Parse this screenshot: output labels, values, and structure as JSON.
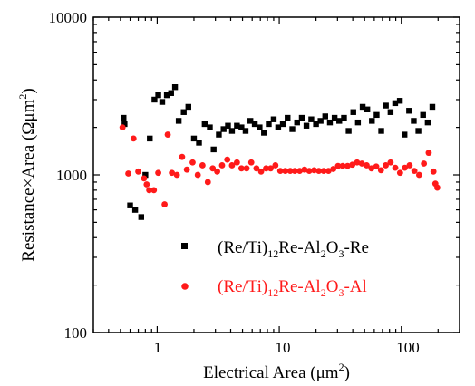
{
  "chart_data": {
    "type": "scatter",
    "title": "",
    "xlabel": "Electrical Area (μm²)",
    "ylabel": "Resistance×Area (Ωμm²)",
    "xscale": "log",
    "yscale": "log",
    "xlim": [
      0.3,
      300
    ],
    "ylim": [
      100,
      10000
    ],
    "x_tick_labels": [
      "1",
      "10",
      "100"
    ],
    "y_tick_labels": [
      "100",
      "1000",
      "10000"
    ],
    "grid": false,
    "legend_position": "bottom-center",
    "series": [
      {
        "name": "(Re/Ti)12Re-Al2O3-Re",
        "color": "#000000",
        "marker": "square",
        "points": [
          [
            0.53,
            2300
          ],
          [
            0.54,
            2100
          ],
          [
            0.6,
            640
          ],
          [
            0.66,
            600
          ],
          [
            0.74,
            540
          ],
          [
            0.8,
            1000
          ],
          [
            0.87,
            1700
          ],
          [
            0.95,
            3000
          ],
          [
            1.02,
            3200
          ],
          [
            1.1,
            2900
          ],
          [
            1.2,
            3200
          ],
          [
            1.3,
            3300
          ],
          [
            1.4,
            3600
          ],
          [
            1.5,
            2200
          ],
          [
            1.65,
            2500
          ],
          [
            1.8,
            2700
          ],
          [
            2.0,
            1700
          ],
          [
            2.2,
            1600
          ],
          [
            2.45,
            2100
          ],
          [
            2.7,
            2000
          ],
          [
            2.9,
            1450
          ],
          [
            3.2,
            1800
          ],
          [
            3.5,
            1950
          ],
          [
            3.8,
            2050
          ],
          [
            4.1,
            1900
          ],
          [
            4.5,
            2050
          ],
          [
            4.9,
            2000
          ],
          [
            5.3,
            1900
          ],
          [
            5.8,
            2200
          ],
          [
            6.3,
            2100
          ],
          [
            6.9,
            2000
          ],
          [
            7.5,
            1850
          ],
          [
            8.2,
            2100
          ],
          [
            9.0,
            2250
          ],
          [
            9.8,
            2000
          ],
          [
            10.7,
            2100
          ],
          [
            11.7,
            2300
          ],
          [
            12.8,
            1950
          ],
          [
            14.0,
            2150
          ],
          [
            15.3,
            2300
          ],
          [
            16.7,
            2050
          ],
          [
            18.3,
            2250
          ],
          [
            20.0,
            2100
          ],
          [
            21.8,
            2200
          ],
          [
            23.8,
            2350
          ],
          [
            26.0,
            2150
          ],
          [
            28.4,
            2300
          ],
          [
            31.0,
            2200
          ],
          [
            33.9,
            2300
          ],
          [
            37.0,
            1900
          ],
          [
            40.4,
            2500
          ],
          [
            44.1,
            2150
          ],
          [
            48.2,
            2700
          ],
          [
            52.6,
            2600
          ],
          [
            57.4,
            2200
          ],
          [
            62.7,
            2400
          ],
          [
            68.4,
            1900
          ],
          [
            74.7,
            2750
          ],
          [
            81.6,
            2500
          ],
          [
            89.0,
            2850
          ],
          [
            97.2,
            2950
          ],
          [
            106.1,
            1800
          ],
          [
            115.8,
            2550
          ],
          [
            126.4,
            2200
          ],
          [
            138.0,
            1900
          ],
          [
            150.7,
            2400
          ],
          [
            164.5,
            2150
          ],
          [
            179.6,
            2700
          ]
        ]
      },
      {
        "name": "(Re/Ti)12Re-Al2O3-Al",
        "color": "#ff1a1a",
        "marker": "circle",
        "points": [
          [
            0.52,
            2000
          ],
          [
            0.58,
            1020
          ],
          [
            0.64,
            1700
          ],
          [
            0.7,
            1050
          ],
          [
            0.78,
            950
          ],
          [
            0.82,
            870
          ],
          [
            0.86,
            800
          ],
          [
            0.94,
            800
          ],
          [
            1.02,
            1030
          ],
          [
            1.15,
            650
          ],
          [
            1.22,
            1800
          ],
          [
            1.32,
            1030
          ],
          [
            1.45,
            1000
          ],
          [
            1.6,
            1300
          ],
          [
            1.75,
            1080
          ],
          [
            1.95,
            1200
          ],
          [
            2.15,
            1000
          ],
          [
            2.35,
            1150
          ],
          [
            2.6,
            900
          ],
          [
            2.85,
            1100
          ],
          [
            3.1,
            1050
          ],
          [
            3.4,
            1150
          ],
          [
            3.75,
            1250
          ],
          [
            4.1,
            1150
          ],
          [
            4.5,
            1200
          ],
          [
            4.9,
            1100
          ],
          [
            5.4,
            1100
          ],
          [
            5.9,
            1200
          ],
          [
            6.5,
            1100
          ],
          [
            7.1,
            1050
          ],
          [
            7.8,
            1100
          ],
          [
            8.5,
            1100
          ],
          [
            9.3,
            1150
          ],
          [
            10.2,
            1060
          ],
          [
            11.2,
            1060
          ],
          [
            12.3,
            1060
          ],
          [
            13.4,
            1060
          ],
          [
            14.7,
            1060
          ],
          [
            16.1,
            1080
          ],
          [
            17.6,
            1060
          ],
          [
            19.3,
            1070
          ],
          [
            21.1,
            1060
          ],
          [
            23.1,
            1060
          ],
          [
            25.3,
            1060
          ],
          [
            27.7,
            1090
          ],
          [
            30.3,
            1140
          ],
          [
            33.1,
            1140
          ],
          [
            36.3,
            1140
          ],
          [
            39.7,
            1160
          ],
          [
            43.4,
            1200
          ],
          [
            47.5,
            1180
          ],
          [
            52.0,
            1150
          ],
          [
            56.9,
            1100
          ],
          [
            62.3,
            1130
          ],
          [
            68.1,
            1070
          ],
          [
            74.5,
            1150
          ],
          [
            81.6,
            1200
          ],
          [
            89.2,
            1110
          ],
          [
            97.6,
            1030
          ],
          [
            106.8,
            1110
          ],
          [
            116.9,
            1150
          ],
          [
            127.9,
            1060
          ],
          [
            139.9,
            1000
          ],
          [
            153.1,
            1180
          ],
          [
            167.5,
            1380
          ],
          [
            183.3,
            1050
          ],
          [
            190.0,
            880
          ],
          [
            197.0,
            830
          ]
        ]
      }
    ]
  },
  "legend": {
    "series1": {
      "prefix": "(Re/Ti)",
      "sub1": "12",
      "mid": "Re-Al",
      "sub2": "2",
      "mid2": "O",
      "sub3": "3",
      "suffix": "-Re"
    },
    "series2": {
      "prefix": "(Re/Ti)",
      "sub1": "12",
      "mid": "Re-Al",
      "sub2": "2",
      "mid2": "O",
      "sub3": "3",
      "suffix": "-Al"
    }
  },
  "axis_titles": {
    "x": {
      "main": "Electrical Area (μm",
      "sup": "2",
      "end": ")"
    },
    "y": {
      "main": "Resistance×Area (Ωμm",
      "sup": "2",
      "end": ")"
    }
  }
}
